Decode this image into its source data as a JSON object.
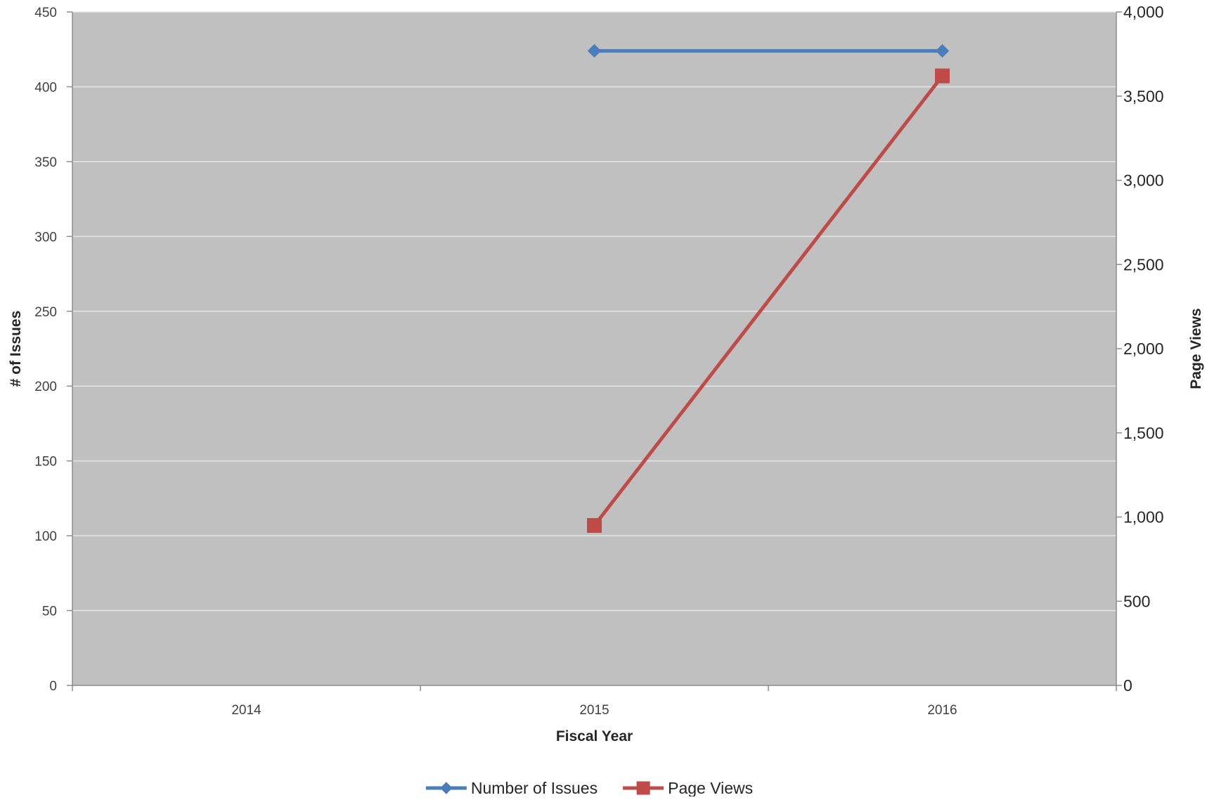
{
  "chart_data": {
    "type": "line",
    "title": "",
    "xlabel": "Fiscal Year",
    "ylabel": "# of Issues",
    "y2label": "Page Views",
    "categories": [
      "2014",
      "2015",
      "2016"
    ],
    "ylim": [
      0,
      450
    ],
    "y2lim": [
      0,
      4000
    ],
    "yticks": [
      "0",
      "50",
      "100",
      "150",
      "200",
      "250",
      "300",
      "350",
      "400",
      "450"
    ],
    "y2ticks": [
      "0",
      "500",
      "1,000",
      "1,500",
      "2,000",
      "2,500",
      "3,000",
      "3,500",
      "4,000"
    ],
    "grid": true,
    "legend_position": "bottom",
    "series": [
      {
        "name": "Number of Issues",
        "axis": "left",
        "marker": "diamond",
        "color": "#4A7EBB",
        "values": [
          null,
          424,
          424
        ]
      },
      {
        "name": "Page Views",
        "axis": "right",
        "marker": "square",
        "color": "#BE4B48",
        "values": [
          null,
          950,
          3620
        ]
      }
    ],
    "colors": {
      "plot_background": "#C0C0C0",
      "gridline": "#E6E6E6",
      "axis_line": "#8C8C8C"
    }
  }
}
